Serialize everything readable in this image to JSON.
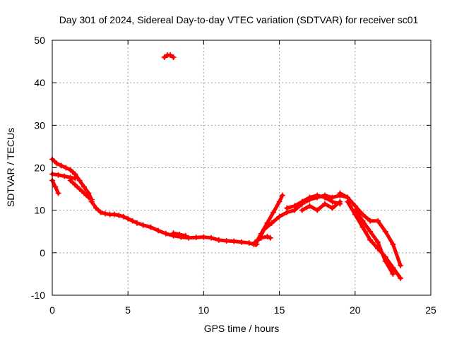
{
  "chart_data": {
    "type": "scatter",
    "title": "Day 301 of 2024, Sidereal Day-to-day VTEC variation (SDTVAR) for receiver sc01",
    "xlabel": "GPS time / hours",
    "ylabel": "SDTVAR / TECUs",
    "xlim": [
      0,
      25
    ],
    "ylim": [
      -10,
      50
    ],
    "xticks": [
      0,
      5,
      10,
      15,
      20,
      25
    ],
    "yticks": [
      -10,
      0,
      10,
      20,
      30,
      40,
      50
    ],
    "xtick_labels": [
      "0",
      "5",
      "10",
      "15",
      "20",
      "25"
    ],
    "ytick_labels": [
      "-10",
      "0",
      "10",
      "20",
      "30",
      "40",
      "50"
    ],
    "grid": true,
    "series": [
      {
        "name": "sc01",
        "color": "#ff0000",
        "marker": "plus",
        "traces": [
          {
            "x": [
              0.0,
              0.3,
              0.6,
              0.9,
              1.2,
              1.5
            ],
            "y": [
              22.0,
              21.0,
              20.5,
              20.0,
              19.5,
              18.5
            ]
          },
          {
            "x": [
              0.0,
              0.2,
              0.4
            ],
            "y": [
              17.0,
              15.5,
              14.0
            ]
          },
          {
            "x": [
              0.0,
              0.4,
              0.8,
              1.2,
              1.5
            ],
            "y": [
              18.5,
              18.3,
              18.0,
              17.7,
              17.5
            ]
          },
          {
            "x": [
              1.2,
              1.5,
              1.8,
              2.1,
              2.4,
              2.6
            ],
            "y": [
              19.5,
              18.5,
              17.0,
              15.5,
              14.0,
              12.5
            ]
          },
          {
            "x": [
              1.2,
              1.5,
              1.8,
              2.1,
              2.4,
              2.6
            ],
            "y": [
              17.0,
              16.0,
              15.0,
              14.0,
              13.0,
              12.5
            ]
          },
          {
            "x": [
              2.6,
              2.9,
              3.2,
              3.5,
              3.8,
              4.1,
              4.4,
              4.7,
              5.0,
              5.3,
              5.6,
              6.0,
              6.5,
              7.0,
              7.5,
              8.0,
              8.5,
              9.0,
              9.5,
              10.0,
              10.5,
              11.0,
              11.5,
              12.0,
              12.5,
              13.0,
              13.3,
              13.5
            ],
            "y": [
              12.0,
              10.5,
              9.5,
              9.2,
              9.0,
              9.0,
              8.8,
              8.5,
              8.0,
              7.5,
              7.0,
              6.5,
              6.0,
              5.2,
              4.5,
              4.0,
              3.7,
              3.5,
              3.6,
              3.7,
              3.5,
              3.0,
              2.8,
              2.7,
              2.5,
              2.3,
              2.0,
              2.0
            ]
          },
          {
            "x": [
              8.0,
              8.4,
              8.8
            ],
            "y": [
              4.6,
              4.3,
              4.0
            ]
          },
          {
            "x": [
              7.4,
              7.6,
              7.8,
              8.0
            ],
            "y": [
              46.0,
              46.5,
              46.5,
              46.0
            ]
          },
          {
            "x": [
              13.4,
              13.8,
              14.2,
              14.6,
              15.0,
              15.2
            ],
            "y": [
              2.0,
              4.5,
              7.0,
              9.5,
              12.0,
              13.5
            ]
          },
          {
            "x": [
              13.4,
              13.8,
              14.2,
              14.4
            ],
            "y": [
              2.5,
              3.5,
              3.8,
              3.5
            ]
          },
          {
            "x": [
              13.6,
              14.0,
              14.5,
              15.0,
              15.5,
              16.0,
              16.5,
              17.0,
              17.5,
              18.0,
              18.5,
              19.0,
              19.5
            ],
            "y": [
              3.0,
              5.5,
              7.0,
              8.5,
              9.5,
              10.0,
              11.5,
              12.5,
              13.0,
              13.5,
              13.0,
              13.5,
              13.0
            ]
          },
          {
            "x": [
              15.5,
              16.0,
              16.5,
              17.0,
              17.5,
              18.0,
              18.5,
              19.0
            ],
            "y": [
              10.5,
              11.0,
              12.0,
              13.0,
              13.5,
              13.0,
              12.0,
              11.5
            ]
          },
          {
            "x": [
              16.5,
              17.0,
              17.5,
              18.0,
              18.5,
              19.0
            ],
            "y": [
              10.0,
              11.0,
              10.0,
              11.5,
              10.5,
              12.0
            ]
          },
          {
            "x": [
              19.0,
              19.5,
              20.0,
              20.5,
              21.0,
              21.5,
              22.0,
              22.5,
              23.0
            ],
            "y": [
              14.0,
              13.0,
              11.0,
              9.0,
              7.5,
              7.5,
              5.0,
              2.0,
              -3.0
            ]
          },
          {
            "x": [
              19.5,
              20.0,
              20.5,
              21.0,
              21.5,
              22.0,
              22.5,
              23.0
            ],
            "y": [
              12.0,
              9.0,
              6.0,
              3.0,
              1.0,
              -1.0,
              -3.5,
              -6.0
            ]
          },
          {
            "x": [
              20.0,
              20.5,
              21.0,
              21.5,
              22.0,
              22.5
            ],
            "y": [
              10.0,
              7.5,
              5.0,
              2.5,
              -2.0,
              -5.0
            ]
          }
        ]
      }
    ]
  }
}
